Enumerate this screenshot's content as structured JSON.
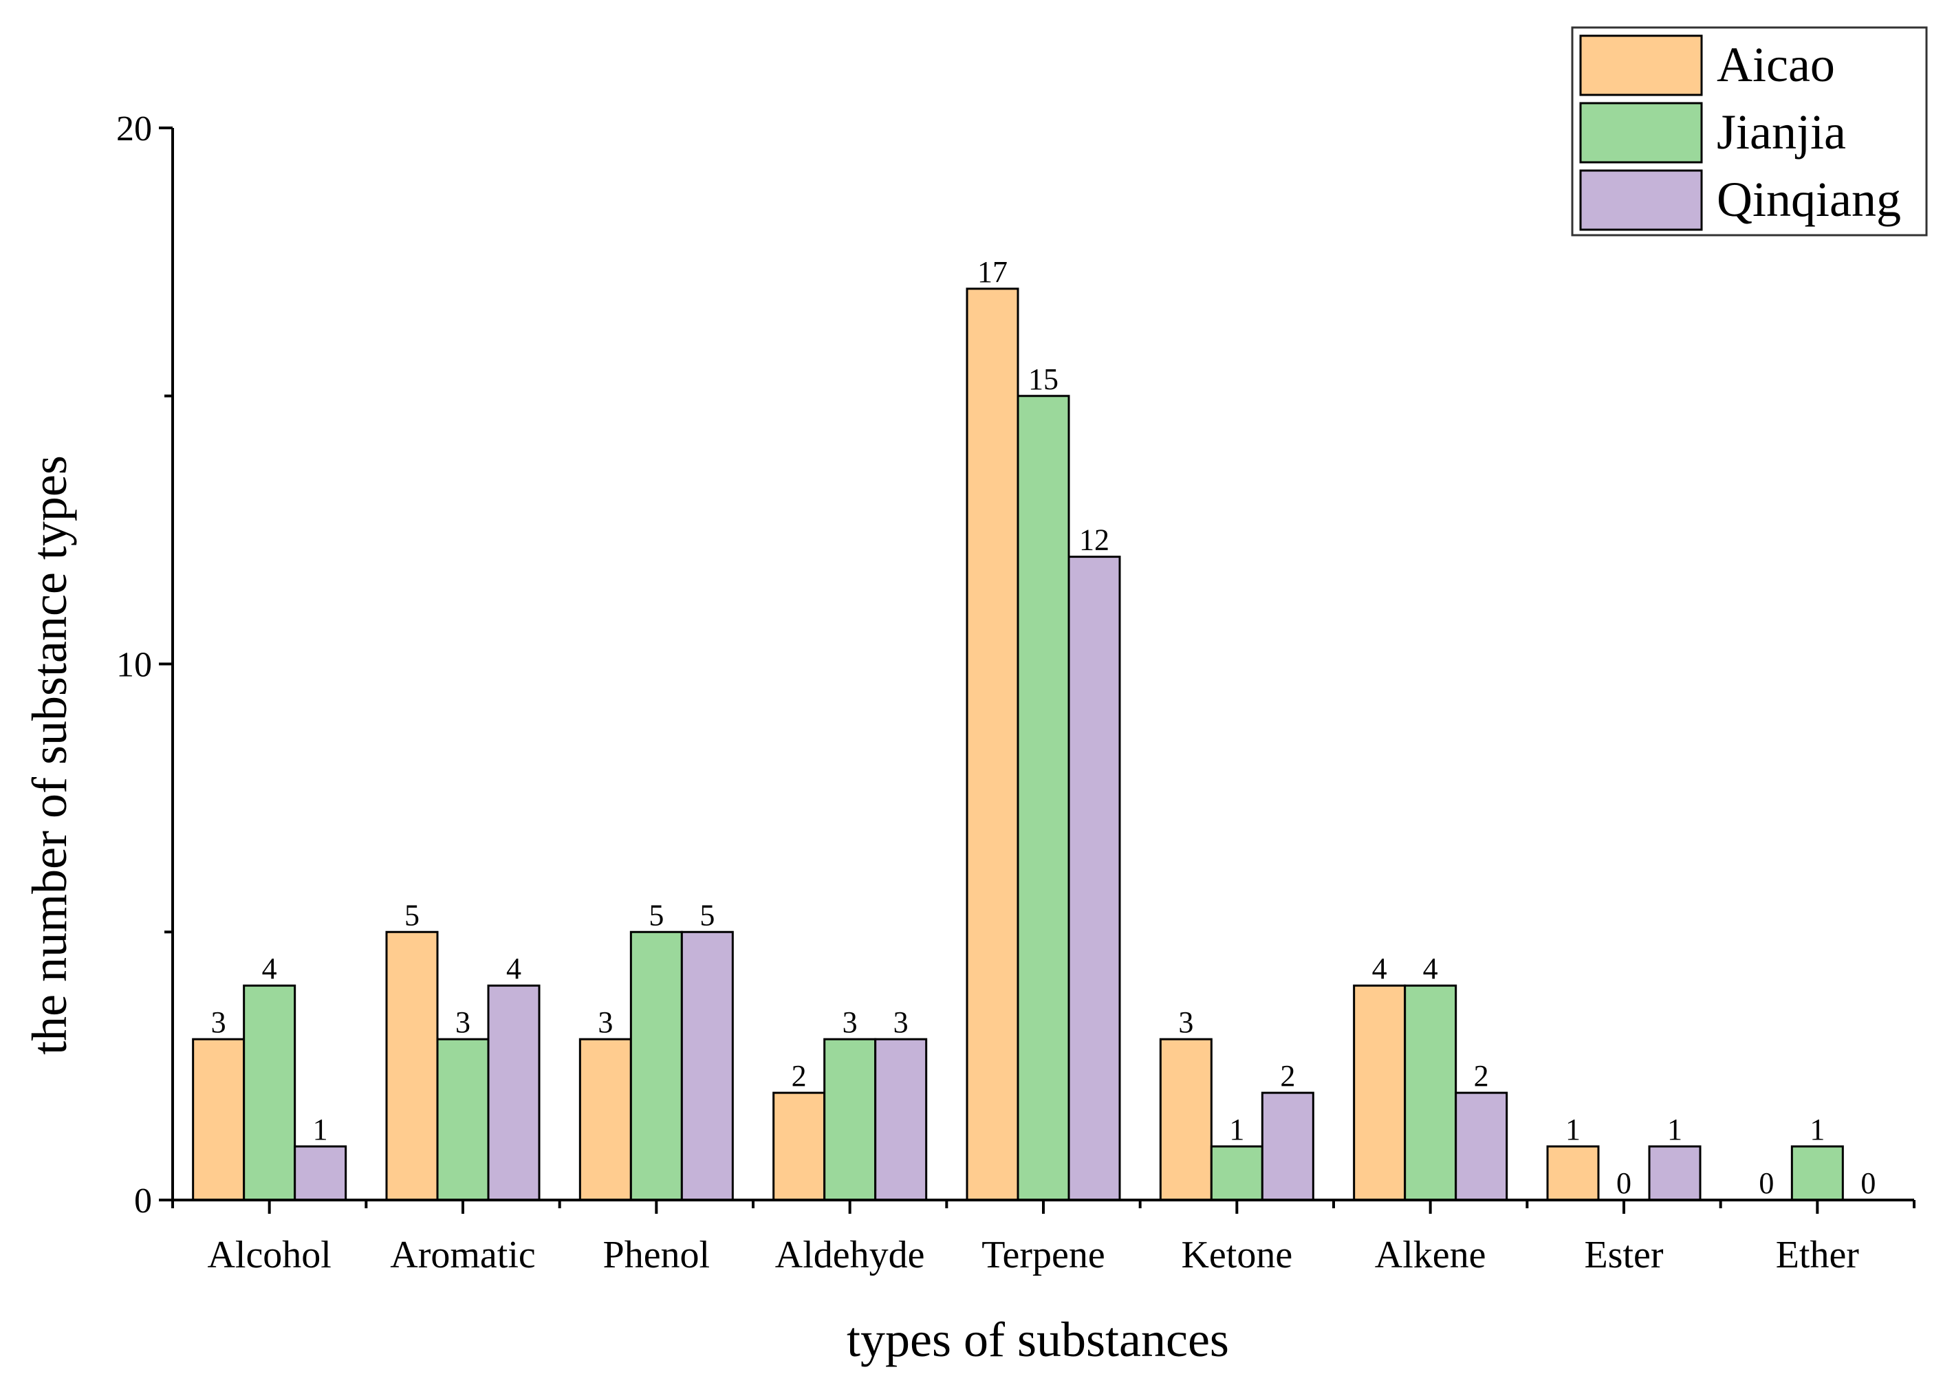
{
  "chart_data": {
    "type": "bar",
    "title": "",
    "xlabel": "types of substances",
    "ylabel": "the number of substance types",
    "categories": [
      "Alcohol",
      "Aromatic",
      "Phenol",
      "Aldehyde",
      "Terpene",
      "Ketone",
      "Alkene",
      "Ester",
      "Ether"
    ],
    "series": [
      {
        "name": "Aicao",
        "color": "#FFCC8F",
        "values": [
          3,
          5,
          3,
          2,
          17,
          3,
          4,
          1,
          0
        ]
      },
      {
        "name": "Jianjia",
        "color": "#9BD89B",
        "values": [
          4,
          3,
          5,
          3,
          15,
          1,
          4,
          0,
          1
        ]
      },
      {
        "name": "Qinqiang",
        "color": "#C5B3D8",
        "values": [
          1,
          4,
          5,
          3,
          12,
          2,
          2,
          1,
          0
        ]
      }
    ],
    "ylim": [
      0,
      20
    ],
    "yticks": [
      0,
      10,
      20
    ],
    "grid": false,
    "legend_position": "top-right",
    "data_labels": true
  }
}
